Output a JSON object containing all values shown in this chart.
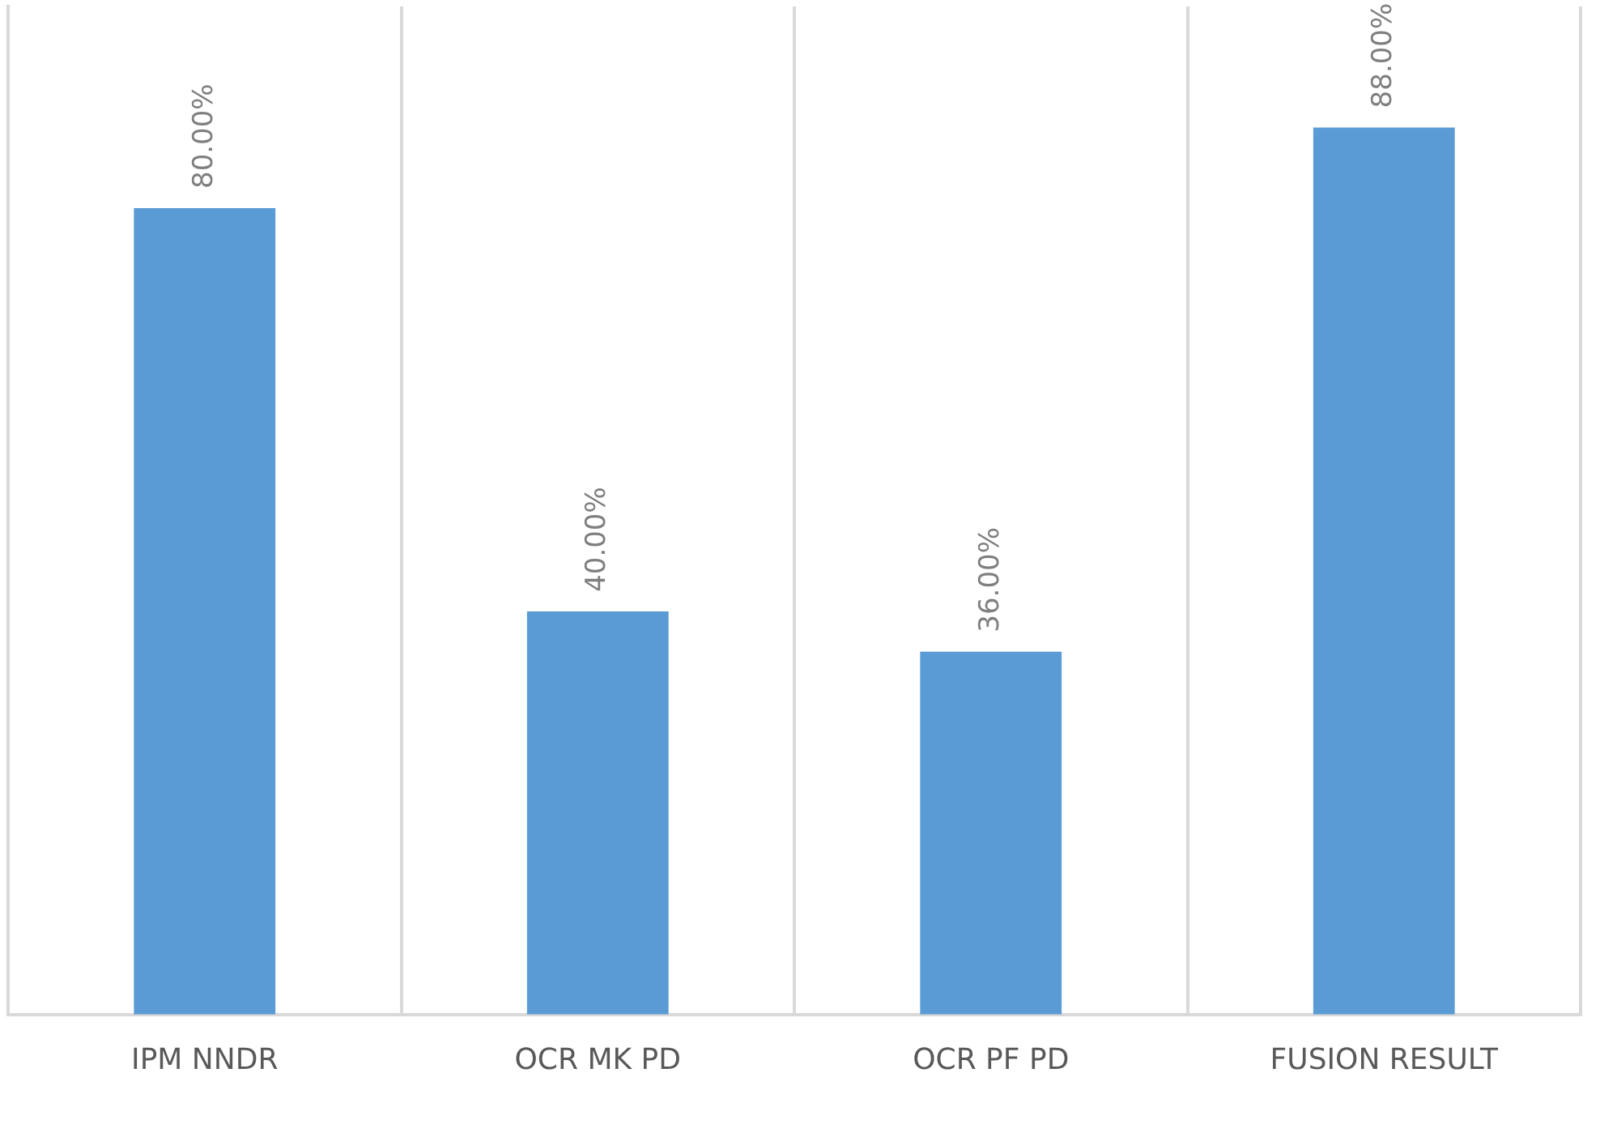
{
  "chart_data": {
    "type": "bar",
    "categories": [
      "IPM NNDR",
      "OCR MK PD",
      "OCR PF PD",
      "FUSION RESULT"
    ],
    "values": [
      80,
      40,
      36,
      88
    ],
    "value_labels": [
      "80.00%",
      "40.00%",
      "36.00%",
      "88.00%"
    ],
    "color": "#5b9bd5",
    "grid": "x",
    "legend": false
  }
}
